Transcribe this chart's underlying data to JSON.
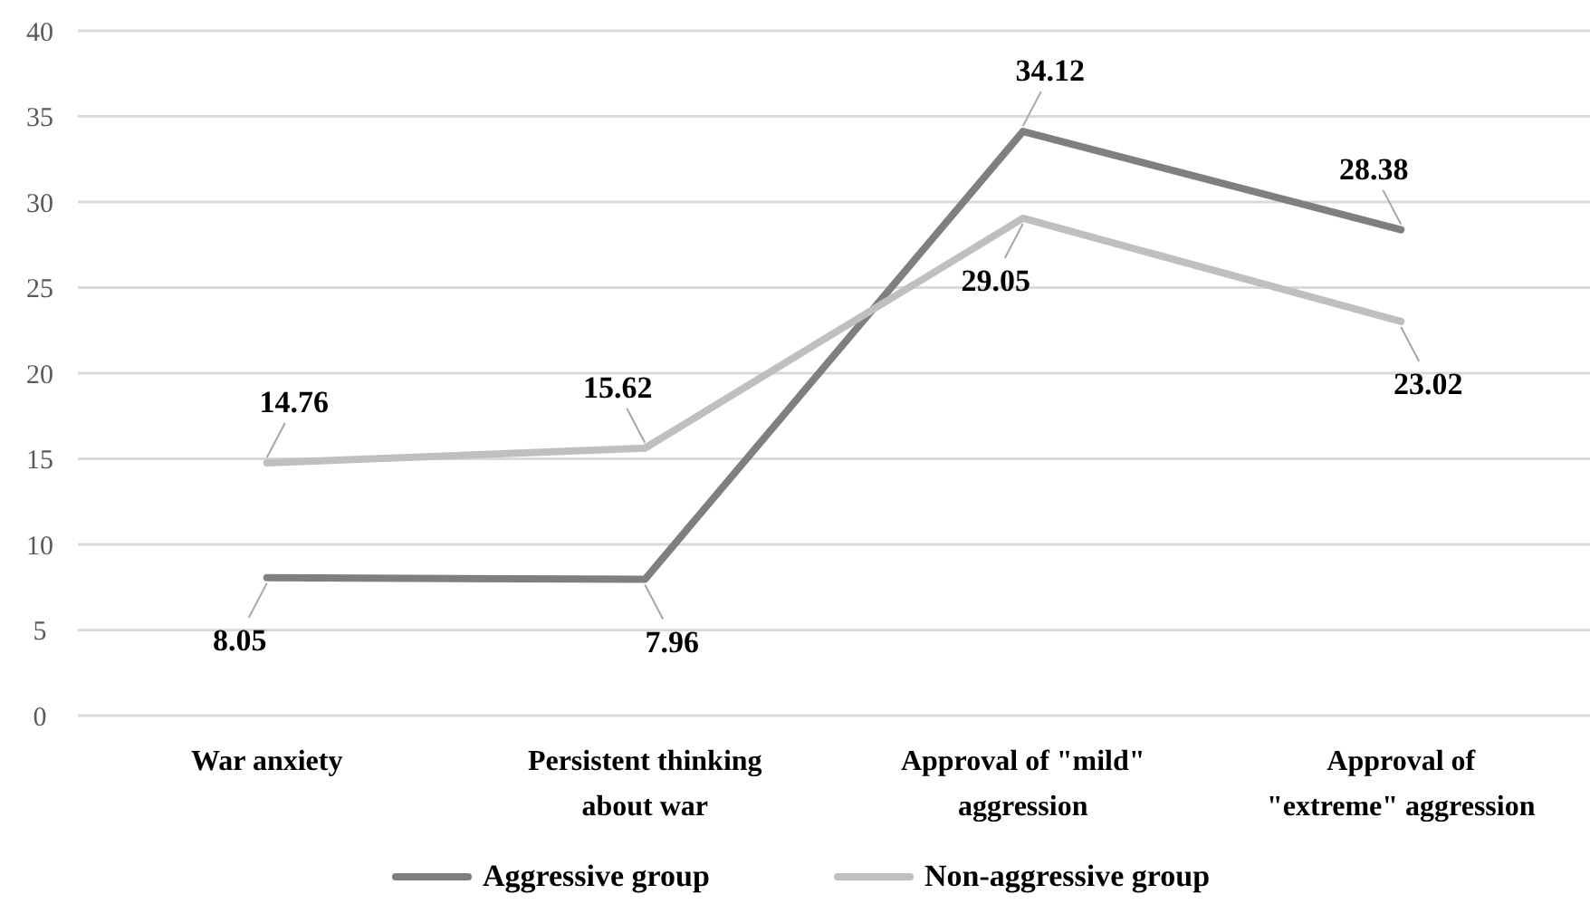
{
  "chart_data": {
    "type": "line",
    "categories": [
      "War anxiety",
      "Persistent thinking about war",
      "Approval of \"mild\" aggression",
      "Approval of \"extreme\" aggression"
    ],
    "series": [
      {
        "name": "Aggressive group",
        "color": "#7f7f7f",
        "values": [
          8.05,
          7.96,
          34.12,
          28.38
        ]
      },
      {
        "name": "Non-aggressive group",
        "color": "#bfbfbf",
        "values": [
          14.76,
          15.62,
          29.05,
          23.02
        ]
      }
    ],
    "ylim": [
      0,
      40
    ],
    "yticks": [
      0,
      5,
      10,
      15,
      20,
      25,
      30,
      35,
      40
    ],
    "grid": "y",
    "legend": "bottom",
    "data_labels": true,
    "marker": "none",
    "line_style": "solid"
  }
}
